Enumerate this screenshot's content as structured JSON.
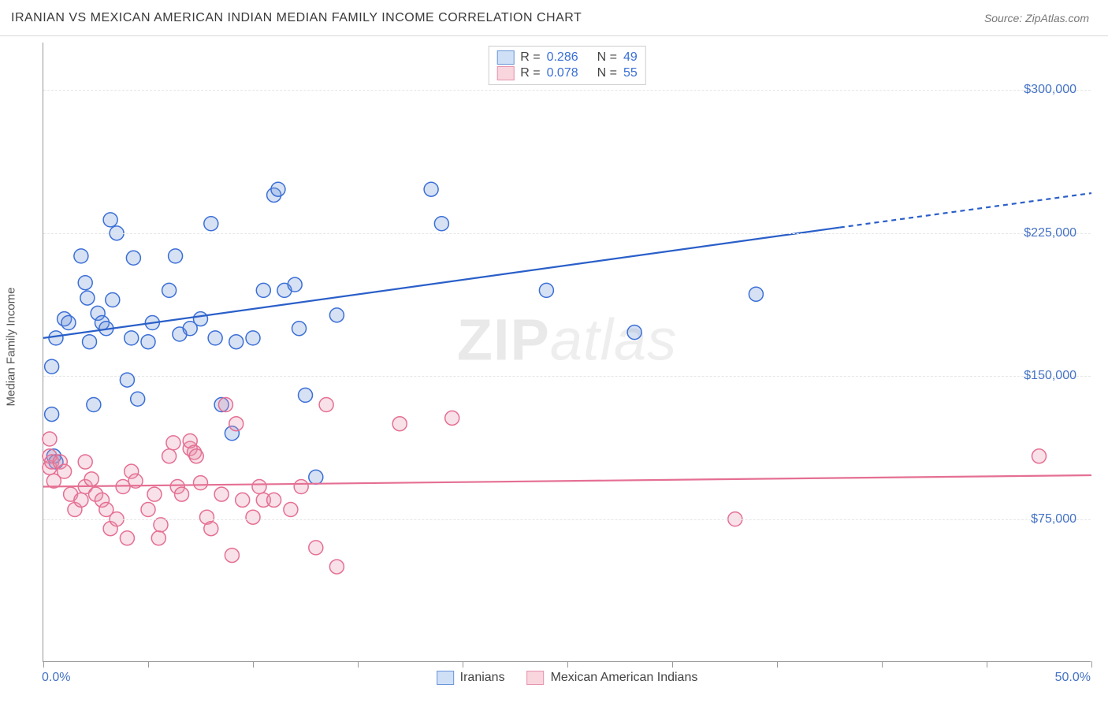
{
  "header": {
    "title": "IRANIAN VS MEXICAN AMERICAN INDIAN MEDIAN FAMILY INCOME CORRELATION CHART",
    "source_prefix": "Source: ",
    "source": "ZipAtlas.com"
  },
  "watermark": {
    "zip": "ZIP",
    "atlas": "atlas"
  },
  "chart": {
    "type": "scatter",
    "background_color": "#ffffff",
    "grid_color": "#e6e6e6",
    "axis_color": "#999999",
    "ylabel": "Median Family Income",
    "ylabel_fontsize": 15,
    "xlim": [
      0,
      50
    ],
    "ylim": [
      0,
      325000
    ],
    "x_tick_positions": [
      0,
      5,
      10,
      15,
      20,
      25,
      30,
      35,
      40,
      45,
      50
    ],
    "x_range_labels": {
      "min": "0.0%",
      "max": "50.0%"
    },
    "y_ticks": [
      {
        "value": 75000,
        "label": "$75,000"
      },
      {
        "value": 150000,
        "label": "$150,000"
      },
      {
        "value": 225000,
        "label": "$225,000"
      },
      {
        "value": 300000,
        "label": "$300,000"
      }
    ],
    "marker_radius": 9,
    "marker_stroke_width": 1.5,
    "marker_fill_opacity": 0.28,
    "trend_line_width": 2.2,
    "legend": {
      "stats": [
        {
          "swatch_fill": "#cfe0f6",
          "swatch_stroke": "#6a95d9",
          "r_label": "R =",
          "r": "0.286",
          "n_label": "N =",
          "n": "49"
        },
        {
          "swatch_fill": "#f9d5de",
          "swatch_stroke": "#e594ad",
          "r_label": "R =",
          "r": "0.078",
          "n_label": "N =",
          "n": "55"
        }
      ],
      "series": [
        {
          "swatch_fill": "#cfe0f6",
          "swatch_stroke": "#6a95d9",
          "label": "Iranians"
        },
        {
          "swatch_fill": "#f9d5de",
          "swatch_stroke": "#e594ad",
          "label": "Mexican American Indians"
        }
      ]
    },
    "series": [
      {
        "name": "Iranians",
        "marker_fill": "#6a95d9",
        "marker_stroke": "#3b6fd6",
        "trend_color": "#2a5fc9",
        "trend": {
          "x0": 0,
          "y0": 170000,
          "x1_solid": 38,
          "y1_solid": 228000,
          "x1_dash": 50,
          "y1_dash": 246000
        },
        "points": [
          [
            0.4,
            155000
          ],
          [
            0.4,
            130000
          ],
          [
            0.5,
            108000
          ],
          [
            0.6,
            170000
          ],
          [
            0.6,
            105000
          ],
          [
            1.0,
            180000
          ],
          [
            1.2,
            178000
          ],
          [
            1.8,
            213000
          ],
          [
            2.0,
            199000
          ],
          [
            2.1,
            191000
          ],
          [
            2.2,
            168000
          ],
          [
            2.4,
            135000
          ],
          [
            2.6,
            183000
          ],
          [
            2.8,
            178000
          ],
          [
            3.0,
            175000
          ],
          [
            3.2,
            232000
          ],
          [
            3.3,
            190000
          ],
          [
            3.5,
            225000
          ],
          [
            4.0,
            148000
          ],
          [
            4.2,
            170000
          ],
          [
            4.3,
            212000
          ],
          [
            4.5,
            138000
          ],
          [
            5.0,
            168000
          ],
          [
            5.2,
            178000
          ],
          [
            6.0,
            195000
          ],
          [
            6.3,
            213000
          ],
          [
            6.5,
            172000
          ],
          [
            7.0,
            175000
          ],
          [
            7.5,
            180000
          ],
          [
            8.0,
            230000
          ],
          [
            8.2,
            170000
          ],
          [
            8.5,
            135000
          ],
          [
            9.0,
            120000
          ],
          [
            9.2,
            168000
          ],
          [
            10.0,
            170000
          ],
          [
            10.5,
            195000
          ],
          [
            11.0,
            245000
          ],
          [
            11.2,
            248000
          ],
          [
            11.5,
            195000
          ],
          [
            12.0,
            198000
          ],
          [
            12.2,
            175000
          ],
          [
            12.5,
            140000
          ],
          [
            13.0,
            97000
          ],
          [
            14.0,
            182000
          ],
          [
            18.5,
            248000
          ],
          [
            19.0,
            230000
          ],
          [
            24.0,
            195000
          ],
          [
            28.2,
            173000
          ],
          [
            34.0,
            193000
          ]
        ]
      },
      {
        "name": "Mexican American Indians",
        "marker_fill": "#e594ad",
        "marker_stroke": "#e56f93",
        "trend_color": "#e56f93",
        "trend": {
          "x0": 0,
          "y0": 92000,
          "x1_solid": 50,
          "y1_solid": 98000,
          "x1_dash": 50,
          "y1_dash": 98000
        },
        "points": [
          [
            0.3,
            117000
          ],
          [
            0.3,
            102000
          ],
          [
            0.3,
            108000
          ],
          [
            0.4,
            105000
          ],
          [
            0.5,
            95000
          ],
          [
            0.8,
            105000
          ],
          [
            1.0,
            100000
          ],
          [
            1.3,
            88000
          ],
          [
            1.5,
            80000
          ],
          [
            1.8,
            85000
          ],
          [
            2.0,
            92000
          ],
          [
            2.0,
            105000
          ],
          [
            2.3,
            96000
          ],
          [
            2.5,
            88000
          ],
          [
            2.8,
            85000
          ],
          [
            3.0,
            80000
          ],
          [
            3.2,
            70000
          ],
          [
            3.5,
            75000
          ],
          [
            3.8,
            92000
          ],
          [
            4.0,
            65000
          ],
          [
            4.2,
            100000
          ],
          [
            4.4,
            95000
          ],
          [
            5.0,
            80000
          ],
          [
            5.3,
            88000
          ],
          [
            5.5,
            65000
          ],
          [
            5.6,
            72000
          ],
          [
            6.0,
            108000
          ],
          [
            6.2,
            115000
          ],
          [
            6.4,
            92000
          ],
          [
            6.6,
            88000
          ],
          [
            7.0,
            112000
          ],
          [
            7.0,
            116000
          ],
          [
            7.2,
            110000
          ],
          [
            7.3,
            108000
          ],
          [
            7.5,
            94000
          ],
          [
            7.8,
            76000
          ],
          [
            8.0,
            70000
          ],
          [
            8.5,
            88000
          ],
          [
            8.7,
            135000
          ],
          [
            9.0,
            56000
          ],
          [
            9.2,
            125000
          ],
          [
            9.5,
            85000
          ],
          [
            10.0,
            76000
          ],
          [
            10.3,
            92000
          ],
          [
            10.5,
            85000
          ],
          [
            11.0,
            85000
          ],
          [
            11.8,
            80000
          ],
          [
            12.3,
            92000
          ],
          [
            13.0,
            60000
          ],
          [
            13.5,
            135000
          ],
          [
            14.0,
            50000
          ],
          [
            17.0,
            125000
          ],
          [
            19.5,
            128000
          ],
          [
            33.0,
            75000
          ],
          [
            47.5,
            108000
          ]
        ]
      }
    ]
  }
}
